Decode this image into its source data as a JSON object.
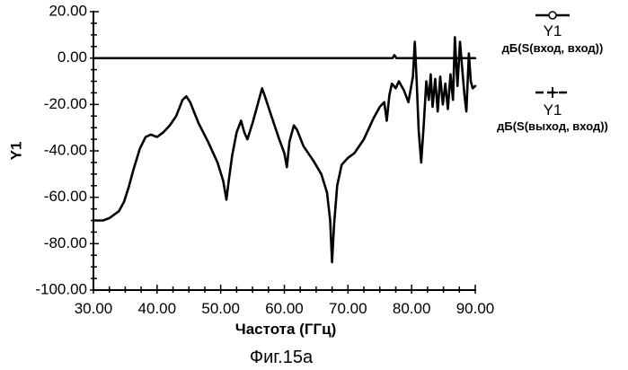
{
  "chart_data": {
    "type": "line",
    "ylabel": "Y1",
    "xlabel": "Частота (ГГц)",
    "caption": "Фиг.15а",
    "xlim": [
      30,
      90
    ],
    "ylim": [
      -100,
      20
    ],
    "x_ticks": [
      "30.00",
      "40.00",
      "50.00",
      "60.00",
      "70.00",
      "80.00",
      "90.00"
    ],
    "y_ticks": [
      "20.00",
      "0.00",
      "-20.00",
      "-40.00",
      "-60.00",
      "-80.00",
      "-100.00"
    ],
    "legend_position": "right",
    "series": [
      {
        "name": "Y1",
        "expression": "дБ(S(вход, вход))",
        "marker": "circle",
        "points": [
          [
            30,
            0
          ],
          [
            77,
            0
          ],
          [
            77.3,
            1.3
          ],
          [
            77.6,
            0
          ],
          [
            90,
            0
          ]
        ]
      },
      {
        "name": "Y1",
        "expression": "дБ(S(выход, вход))",
        "marker": "plus",
        "points": [
          [
            30,
            -70
          ],
          [
            31.5,
            -70
          ],
          [
            32.5,
            -69
          ],
          [
            34,
            -66
          ],
          [
            34.8,
            -62
          ],
          [
            35.5,
            -56
          ],
          [
            36.3,
            -48
          ],
          [
            37.3,
            -39
          ],
          [
            38.2,
            -34
          ],
          [
            39,
            -33
          ],
          [
            40,
            -34
          ],
          [
            41,
            -32
          ],
          [
            42,
            -29
          ],
          [
            43,
            -25
          ],
          [
            44,
            -18
          ],
          [
            44.6,
            -16.5
          ],
          [
            45.2,
            -19
          ],
          [
            46.5,
            -28
          ],
          [
            48,
            -36
          ],
          [
            49.5,
            -45
          ],
          [
            50.4,
            -53
          ],
          [
            50.9,
            -61
          ],
          [
            51.3,
            -52
          ],
          [
            51.8,
            -42
          ],
          [
            52.5,
            -32
          ],
          [
            53.2,
            -27
          ],
          [
            53.7,
            -32
          ],
          [
            54.2,
            -35
          ],
          [
            55,
            -28
          ],
          [
            55.8,
            -20
          ],
          [
            56.5,
            -13
          ],
          [
            57,
            -17
          ],
          [
            58.2,
            -27
          ],
          [
            59.2,
            -35
          ],
          [
            60,
            -41
          ],
          [
            60.4,
            -47
          ],
          [
            60.8,
            -36
          ],
          [
            61.5,
            -29
          ],
          [
            62,
            -31
          ],
          [
            63,
            -38
          ],
          [
            64.5,
            -44
          ],
          [
            65.8,
            -50
          ],
          [
            66.7,
            -58
          ],
          [
            67.2,
            -70
          ],
          [
            67.5,
            -88
          ],
          [
            67.8,
            -72
          ],
          [
            68.3,
            -55
          ],
          [
            69,
            -46
          ],
          [
            70,
            -43
          ],
          [
            71,
            -41
          ],
          [
            72.5,
            -35
          ],
          [
            74,
            -26
          ],
          [
            75,
            -21
          ],
          [
            75.7,
            -19
          ],
          [
            76.1,
            -27
          ],
          [
            76.5,
            -16
          ],
          [
            76.9,
            -11
          ],
          [
            77.5,
            -13
          ],
          [
            78,
            -10
          ],
          [
            78.8,
            -14
          ],
          [
            79.5,
            -19
          ],
          [
            80.2,
            -8
          ],
          [
            80.5,
            7
          ],
          [
            80.8,
            -10
          ],
          [
            81.1,
            -31
          ],
          [
            81.5,
            -45
          ],
          [
            81.9,
            -29
          ],
          [
            82.3,
            -10
          ],
          [
            82.7,
            -18
          ],
          [
            83,
            -7
          ],
          [
            83.3,
            -21
          ],
          [
            83.7,
            -9
          ],
          [
            84.1,
            -23
          ],
          [
            84.5,
            -8
          ],
          [
            84.9,
            -20
          ],
          [
            85.3,
            -11
          ],
          [
            85.7,
            -22
          ],
          [
            86.1,
            -7
          ],
          [
            86.5,
            -18
          ],
          [
            86.8,
            9
          ],
          [
            87.2,
            -12
          ],
          [
            87.6,
            7
          ],
          [
            88,
            -6
          ],
          [
            88.3,
            -16
          ],
          [
            88.6,
            -23
          ],
          [
            89,
            2
          ],
          [
            89.3,
            -10
          ],
          [
            89.6,
            -13
          ],
          [
            90,
            -12
          ]
        ]
      }
    ]
  }
}
